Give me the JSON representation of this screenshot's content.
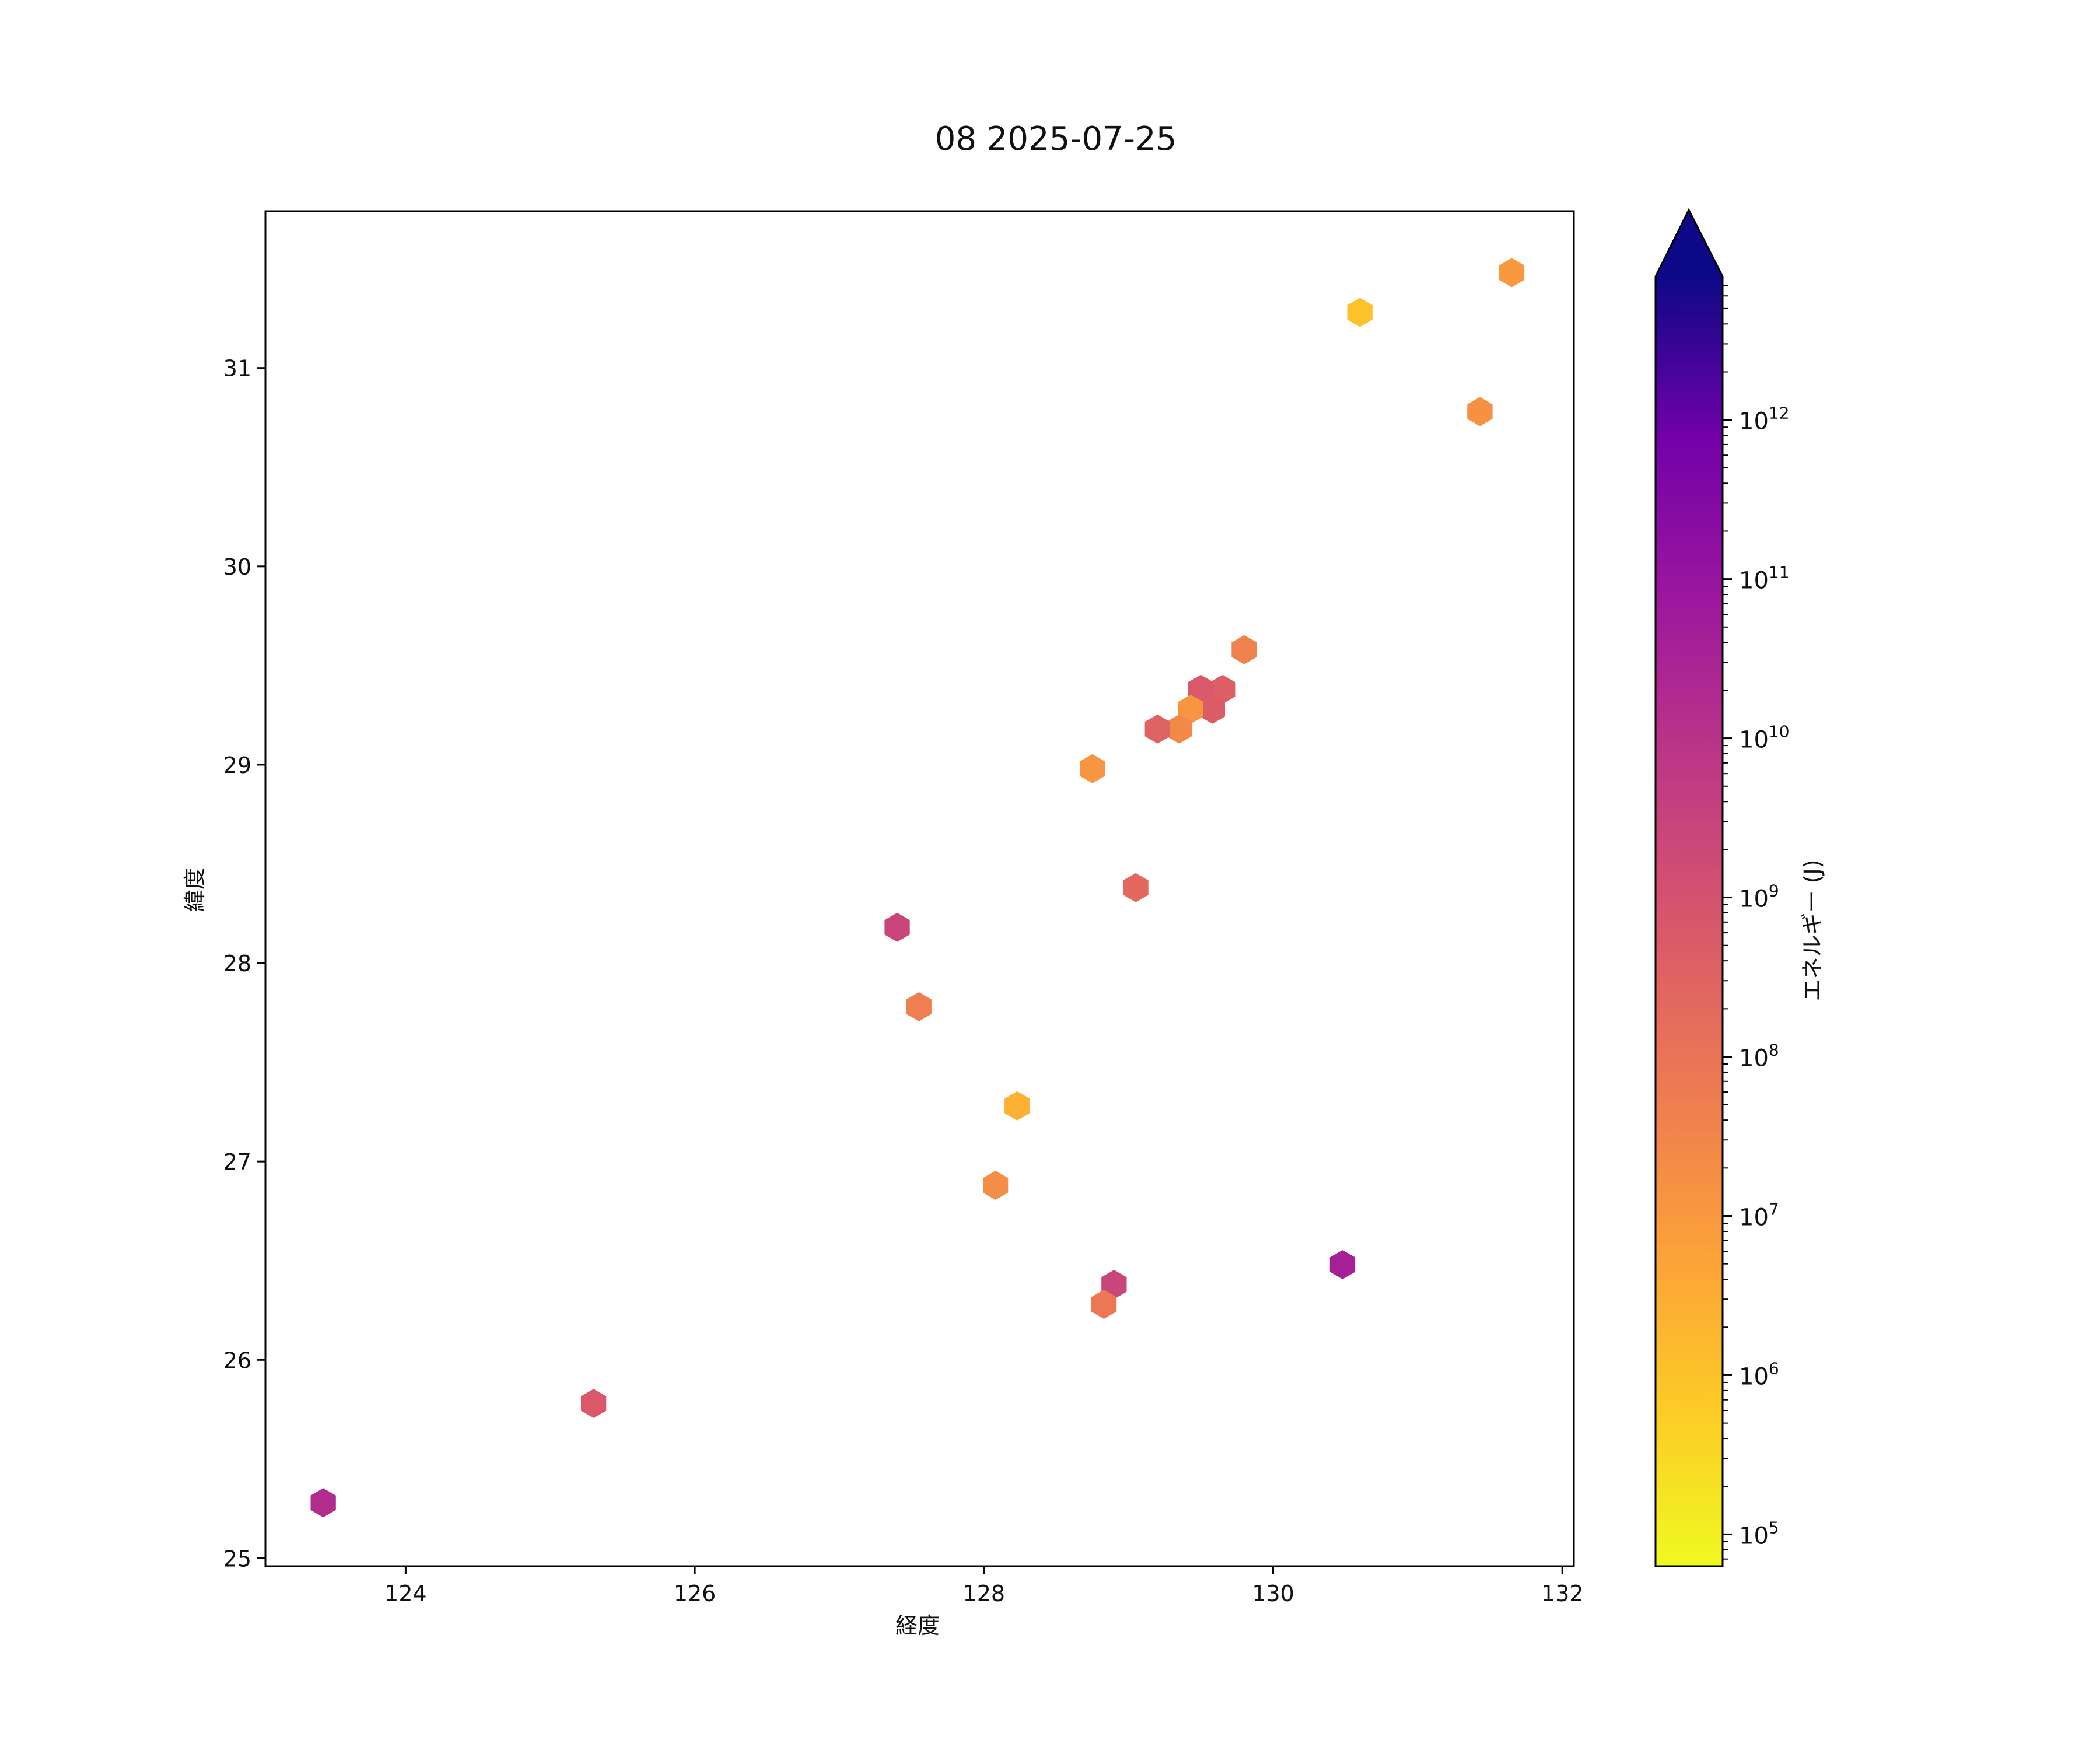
{
  "chart_data": {
    "type": "hexbin",
    "title": "08 2025-07-25",
    "xlabel": "経度",
    "ylabel": "緯度",
    "xlim": [
      123.03,
      132.08
    ],
    "ylim": [
      24.96,
      31.79
    ],
    "xticks": [
      124,
      126,
      128,
      130,
      132
    ],
    "yticks": [
      25,
      26,
      27,
      28,
      29,
      30,
      31
    ],
    "grid": false,
    "colorbar": {
      "label": "エネルギー (J)",
      "scale": "log",
      "colormap": "plasma_r",
      "extend": "max",
      "range_log10": [
        4.8,
        12.9
      ],
      "ticks": [
        {
          "base": "10",
          "exp": "5",
          "log": 5
        },
        {
          "base": "10",
          "exp": "6",
          "log": 6
        },
        {
          "base": "10",
          "exp": "7",
          "log": 7
        },
        {
          "base": "10",
          "exp": "8",
          "log": 8
        },
        {
          "base": "10",
          "exp": "9",
          "log": 9
        },
        {
          "base": "10",
          "exp": "10",
          "log": 10
        },
        {
          "base": "10",
          "exp": "11",
          "log": 11
        },
        {
          "base": "10",
          "exp": "12",
          "log": 12
        }
      ]
    },
    "points": [
      {
        "lon": 131.65,
        "lat": 31.48,
        "log_energy": 7.0
      },
      {
        "lon": 130.6,
        "lat": 31.28,
        "log_energy": 6.0
      },
      {
        "lon": 131.43,
        "lat": 30.78,
        "log_energy": 7.2
      },
      {
        "lon": 129.8,
        "lat": 29.58,
        "log_energy": 7.6
      },
      {
        "lon": 129.65,
        "lat": 29.38,
        "log_energy": 8.6
      },
      {
        "lon": 129.5,
        "lat": 29.38,
        "log_energy": 8.8
      },
      {
        "lon": 129.58,
        "lat": 29.28,
        "log_energy": 8.7
      },
      {
        "lon": 129.43,
        "lat": 29.28,
        "log_energy": 7.1
      },
      {
        "lon": 129.35,
        "lat": 29.18,
        "log_energy": 7.4
      },
      {
        "lon": 129.2,
        "lat": 29.18,
        "log_energy": 8.5
      },
      {
        "lon": 128.75,
        "lat": 28.98,
        "log_energy": 7.1
      },
      {
        "lon": 129.05,
        "lat": 28.38,
        "log_energy": 8.3
      },
      {
        "lon": 127.4,
        "lat": 28.18,
        "log_energy": 9.4
      },
      {
        "lon": 127.55,
        "lat": 27.78,
        "log_energy": 7.7
      },
      {
        "lon": 128.23,
        "lat": 27.28,
        "log_energy": 6.4
      },
      {
        "lon": 128.08,
        "lat": 26.88,
        "log_energy": 7.3
      },
      {
        "lon": 130.48,
        "lat": 26.48,
        "log_energy": 10.6
      },
      {
        "lon": 128.9,
        "lat": 26.38,
        "log_energy": 9.4
      },
      {
        "lon": 128.83,
        "lat": 26.28,
        "log_energy": 7.9
      },
      {
        "lon": 125.3,
        "lat": 25.78,
        "log_energy": 8.8
      },
      {
        "lon": 123.43,
        "lat": 25.28,
        "log_energy": 10.2
      }
    ]
  }
}
